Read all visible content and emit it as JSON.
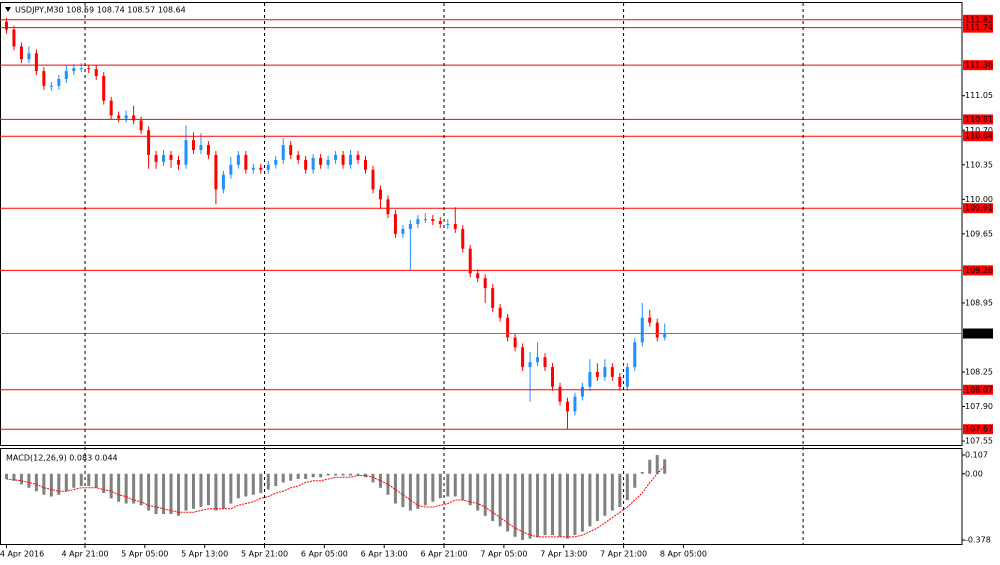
{
  "chart_data": [
    {
      "type": "candlestick",
      "title": "USDJPY,M30  108.59 108.74 108.57 108.64",
      "x": [
        0,
        2,
        4,
        6,
        8,
        10,
        12,
        14,
        16,
        18,
        20,
        22,
        24,
        26,
        28,
        30,
        32,
        34,
        36,
        38,
        40,
        42,
        44,
        46,
        48,
        50,
        52,
        54,
        56,
        58,
        60,
        62,
        64,
        66,
        68,
        70,
        72,
        74,
        76,
        78,
        80,
        82,
        84,
        86,
        88,
        90,
        92,
        94,
        96,
        98,
        100,
        102,
        104,
        106,
        108,
        110,
        112,
        114,
        116,
        118,
        120,
        122,
        124,
        126,
        128,
        130,
        132,
        134,
        136,
        138,
        140,
        142,
        144,
        146,
        148,
        150,
        152,
        154,
        156,
        158,
        160,
        162,
        164,
        166,
        168,
        170,
        172,
        174,
        176
      ],
      "open": [
        111.8,
        111.72,
        111.55,
        111.42,
        111.48,
        111.3,
        111.15,
        111.15,
        111.22,
        111.3,
        111.33,
        111.33,
        111.32,
        111.25,
        111.0,
        110.85,
        110.82,
        110.85,
        110.8,
        110.7,
        110.45,
        110.38,
        110.45,
        110.4,
        110.35,
        110.6,
        110.5,
        110.55,
        110.45,
        110.1,
        110.25,
        110.35,
        110.45,
        110.3,
        110.32,
        110.3,
        110.35,
        110.4,
        110.55,
        110.45,
        110.4,
        110.3,
        110.42,
        110.35,
        110.4,
        110.45,
        110.35,
        110.45,
        110.4,
        110.3,
        110.1,
        110.0,
        109.85,
        109.65,
        109.7,
        109.75,
        109.8,
        109.8,
        109.78,
        109.75,
        109.75,
        109.7,
        109.5,
        109.25,
        109.2,
        109.1,
        108.9,
        108.8,
        108.6,
        108.5,
        108.3,
        108.35,
        108.4,
        108.3,
        108.1,
        107.95,
        107.85,
        108.0,
        108.1,
        108.25,
        108.2,
        108.3,
        108.2,
        108.1,
        108.3,
        108.55,
        108.8,
        108.75,
        108.6
      ],
      "high": [
        111.84,
        111.76,
        111.59,
        111.55,
        111.52,
        111.34,
        111.19,
        111.26,
        111.36,
        111.37,
        111.38,
        111.36,
        111.36,
        111.29,
        111.04,
        110.89,
        110.9,
        110.95,
        110.84,
        110.74,
        110.49,
        110.5,
        110.49,
        110.44,
        110.75,
        110.68,
        110.67,
        110.59,
        110.49,
        110.29,
        110.43,
        110.49,
        110.49,
        110.36,
        110.36,
        110.39,
        110.44,
        110.62,
        110.59,
        110.49,
        110.44,
        110.46,
        110.46,
        110.44,
        110.49,
        110.49,
        110.5,
        110.49,
        110.44,
        110.34,
        110.14,
        110.04,
        109.89,
        109.74,
        109.79,
        109.84,
        109.86,
        109.84,
        109.82,
        109.8,
        109.92,
        109.74,
        109.54,
        109.29,
        109.24,
        109.14,
        108.94,
        108.84,
        108.64,
        108.54,
        108.45,
        108.55,
        108.44,
        108.34,
        108.14,
        107.99,
        108.04,
        108.14,
        108.38,
        108.34,
        108.38,
        108.34,
        108.24,
        108.34,
        108.59,
        108.95,
        108.88,
        108.79,
        108.74
      ],
      "low": [
        111.68,
        111.51,
        111.38,
        111.38,
        111.26,
        111.11,
        111.1,
        111.11,
        111.18,
        111.26,
        111.29,
        111.28,
        111.21,
        110.96,
        110.81,
        110.78,
        110.78,
        110.76,
        110.66,
        110.31,
        110.31,
        110.34,
        110.32,
        110.3,
        110.31,
        110.46,
        110.46,
        110.41,
        109.95,
        110.06,
        110.21,
        110.31,
        110.26,
        110.26,
        110.26,
        110.26,
        110.31,
        110.36,
        110.41,
        110.36,
        110.26,
        110.26,
        110.31,
        110.31,
        110.36,
        110.31,
        110.31,
        110.36,
        110.26,
        110.06,
        109.9,
        109.81,
        109.61,
        109.61,
        109.28,
        109.71,
        109.76,
        109.74,
        109.71,
        109.7,
        109.66,
        109.46,
        109.21,
        109.16,
        108.95,
        108.86,
        108.76,
        108.56,
        108.46,
        108.26,
        107.95,
        108.31,
        108.26,
        108.06,
        107.91,
        107.67,
        107.81,
        107.96,
        108.06,
        108.16,
        108.16,
        108.16,
        108.06,
        108.06,
        108.26,
        108.51,
        108.71,
        108.56,
        108.57
      ],
      "close": [
        111.72,
        111.55,
        111.42,
        111.48,
        111.3,
        111.15,
        111.15,
        111.22,
        111.3,
        111.33,
        111.33,
        111.32,
        111.25,
        111.0,
        110.85,
        110.82,
        110.85,
        110.8,
        110.7,
        110.45,
        110.38,
        110.45,
        110.4,
        110.35,
        110.6,
        110.5,
        110.55,
        110.45,
        110.1,
        110.25,
        110.35,
        110.45,
        110.3,
        110.32,
        110.3,
        110.35,
        110.4,
        110.55,
        110.45,
        110.4,
        110.3,
        110.42,
        110.35,
        110.4,
        110.45,
        110.35,
        110.45,
        110.4,
        110.3,
        110.1,
        110.0,
        109.85,
        109.65,
        109.7,
        109.75,
        109.8,
        109.8,
        109.78,
        109.75,
        109.75,
        109.7,
        109.5,
        109.25,
        109.2,
        109.1,
        108.9,
        108.8,
        108.6,
        108.5,
        108.3,
        108.35,
        108.4,
        108.3,
        108.1,
        107.95,
        107.85,
        108.0,
        108.1,
        108.25,
        108.2,
        108.3,
        108.2,
        108.1,
        108.3,
        108.55,
        108.8,
        108.75,
        108.6,
        108.64
      ],
      "up_color": "#1e90ff",
      "down_color": "#ff0000",
      "xlim": [
        -1.73,
        255.49
      ],
      "ylim": [
        107.51,
        111.99
      ],
      "yticks": [
        111.05,
        {
          "value": 110.7,
          "label": "110.70"
        },
        110.35,
        {
          "value": 110,
          "label": "110.00"
        },
        109.65,
        108.95,
        108.25,
        {
          "value": 107.9,
          "label": "107.90"
        },
        107.55
      ],
      "levels": [
        111.82,
        111.74,
        111.36,
        110.81,
        110.64,
        109.91,
        109.28,
        108.07,
        107.67
      ],
      "level_color": "#ff0000",
      "current": 108.64,
      "current_color": "#4682b4"
    },
    {
      "type": "macd",
      "title": "MACD(12,26,9) 0.083 0.044",
      "x": [
        0,
        2,
        4,
        6,
        8,
        10,
        12,
        14,
        16,
        18,
        20,
        22,
        24,
        26,
        28,
        30,
        32,
        34,
        36,
        38,
        40,
        42,
        44,
        46,
        48,
        50,
        52,
        54,
        56,
        58,
        60,
        62,
        64,
        66,
        68,
        70,
        72,
        74,
        76,
        78,
        80,
        82,
        84,
        86,
        88,
        90,
        92,
        94,
        96,
        98,
        100,
        102,
        104,
        106,
        108,
        110,
        112,
        114,
        116,
        118,
        120,
        122,
        124,
        126,
        128,
        130,
        132,
        134,
        136,
        138,
        140,
        142,
        144,
        146,
        148,
        150,
        152,
        154,
        156,
        158,
        160,
        162,
        164,
        166,
        168,
        170,
        172,
        174,
        176
      ],
      "histogram": [
        -0.03,
        -0.04,
        -0.06,
        -0.08,
        -0.1,
        -0.12,
        -0.13,
        -0.12,
        -0.1,
        -0.08,
        -0.07,
        -0.07,
        -0.08,
        -0.11,
        -0.14,
        -0.16,
        -0.17,
        -0.17,
        -0.18,
        -0.21,
        -0.23,
        -0.23,
        -0.23,
        -0.24,
        -0.21,
        -0.2,
        -0.19,
        -0.18,
        -0.21,
        -0.2,
        -0.17,
        -0.14,
        -0.13,
        -0.12,
        -0.11,
        -0.09,
        -0.07,
        -0.05,
        -0.04,
        -0.03,
        -0.03,
        -0.02,
        -0.02,
        -0.01,
        -0.01,
        -0.01,
        -0.01,
        -0.01,
        -0.02,
        -0.05,
        -0.08,
        -0.12,
        -0.17,
        -0.19,
        -0.21,
        -0.2,
        -0.18,
        -0.16,
        -0.14,
        -0.13,
        -0.13,
        -0.15,
        -0.18,
        -0.21,
        -0.24,
        -0.27,
        -0.3,
        -0.33,
        -0.36,
        -0.378,
        -0.37,
        -0.36,
        -0.35,
        -0.35,
        -0.36,
        -0.37,
        -0.35,
        -0.33,
        -0.3,
        -0.27,
        -0.24,
        -0.21,
        -0.19,
        -0.15,
        -0.08,
        0.01,
        0.08,
        0.107,
        0.083
      ],
      "signal": [
        -0.03,
        -0.035,
        -0.04,
        -0.05,
        -0.06,
        -0.08,
        -0.09,
        -0.1,
        -0.1,
        -0.09,
        -0.08,
        -0.08,
        -0.08,
        -0.09,
        -0.1,
        -0.12,
        -0.13,
        -0.15,
        -0.16,
        -0.18,
        -0.19,
        -0.2,
        -0.21,
        -0.22,
        -0.22,
        -0.22,
        -0.21,
        -0.2,
        -0.2,
        -0.2,
        -0.2,
        -0.18,
        -0.17,
        -0.16,
        -0.14,
        -0.13,
        -0.11,
        -0.1,
        -0.08,
        -0.07,
        -0.05,
        -0.04,
        -0.04,
        -0.03,
        -0.02,
        -0.02,
        -0.02,
        -0.01,
        -0.01,
        -0.02,
        -0.04,
        -0.06,
        -0.09,
        -0.12,
        -0.15,
        -0.18,
        -0.19,
        -0.19,
        -0.18,
        -0.17,
        -0.15,
        -0.15,
        -0.16,
        -0.17,
        -0.19,
        -0.22,
        -0.25,
        -0.28,
        -0.31,
        -0.33,
        -0.35,
        -0.36,
        -0.36,
        -0.36,
        -0.36,
        -0.36,
        -0.36,
        -0.35,
        -0.33,
        -0.31,
        -0.28,
        -0.25,
        -0.22,
        -0.19,
        -0.15,
        -0.11,
        -0.05,
        0.0,
        0.044
      ],
      "histogram_color": "#808080",
      "signal_color": "#ff0000",
      "xlim": [
        -1.73,
        255.49
      ],
      "ylim": [
        -0.378,
        0.107
      ],
      "yticks": [
        0.107,
        {
          "value": 0,
          "label": "0.00"
        },
        -0.378
      ],
      "xticks": [
        {
          "value": 0,
          "label": "4 Apr 2016"
        },
        {
          "value": 21,
          "label": "4 Apr 21:00"
        },
        {
          "value": 37,
          "label": "5 Apr 05:00"
        },
        {
          "value": 53,
          "label": "5 Apr 13:00"
        },
        {
          "value": 69,
          "label": "5 Apr 21:00"
        },
        {
          "value": 85,
          "label": "6 Apr 05:00"
        },
        {
          "value": 101,
          "label": "6 Apr 13:00"
        },
        {
          "value": 117,
          "label": "6 Apr 21:00"
        },
        {
          "value": 133,
          "label": "7 Apr 05:00"
        },
        {
          "value": 149,
          "label": "7 Apr 13:00"
        },
        {
          "value": 165,
          "label": "7 Apr 21:00"
        },
        {
          "value": 181,
          "label": "8 Apr 05:00"
        }
      ],
      "xgrid": [
        21,
        69,
        117,
        165,
        213
      ]
    }
  ]
}
